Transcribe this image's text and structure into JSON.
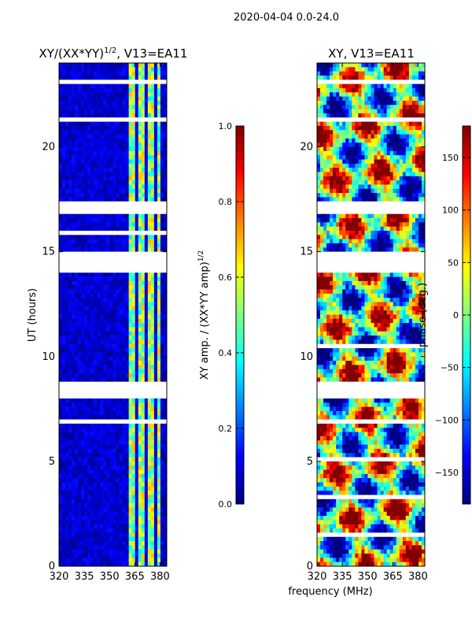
{
  "suptitle": "2020-04-04 0.0-24.0",
  "xlabel_shared": "frequency (MHz)",
  "colors": {
    "jet": [
      "#00007f",
      "#0000ff",
      "#007fff",
      "#00ffff",
      "#7fff7f",
      "#ffff00",
      "#ff7f00",
      "#ff0000",
      "#7f0000"
    ],
    "gap": "#ffffff",
    "frame": "#000000"
  },
  "chart_data": [
    {
      "type": "heatmap",
      "title_main": "XY/(XX*YY)",
      "title_sup": "1/2",
      "title_tail": ", V13=EA11",
      "xlabel": "",
      "ylabel": "UT (hours)",
      "xlim": [
        320,
        384
      ],
      "ylim": [
        0,
        24
      ],
      "xticks": [
        "320",
        "335",
        "350",
        "365",
        "380"
      ],
      "xtick_values": [
        320,
        335,
        350,
        365,
        380
      ],
      "yticks": [
        "0",
        "5",
        "10",
        "15",
        "20"
      ],
      "ytick_values": [
        0,
        5,
        10,
        15,
        20
      ],
      "description_value_range": [
        0.0,
        0.6
      ],
      "bright_band_mhz": [
        361,
        380
      ],
      "blank_time_ranges_hours": [
        [
          14.0,
          14.9
        ],
        [
          8.0,
          8.6
        ],
        [
          16.9,
          17.3
        ]
      ],
      "colorbar": {
        "label_main": "XY amp. / (XX*YY amp)",
        "label_sup": "1/2",
        "vmin": 0.0,
        "vmax": 1.0,
        "ticks": [
          "0.0",
          "0.2",
          "0.4",
          "0.6",
          "0.8",
          "1.0"
        ],
        "tick_values": [
          0.0,
          0.2,
          0.4,
          0.6,
          0.8,
          1.0
        ]
      }
    },
    {
      "type": "heatmap",
      "title": "XY, V13=EA11",
      "xlabel": "frequency (MHz)",
      "ylabel": "",
      "xlim": [
        320,
        384
      ],
      "ylim": [
        0,
        24
      ],
      "xticks": [
        "320",
        "335",
        "350",
        "365",
        "380"
      ],
      "xtick_values": [
        320,
        335,
        350,
        365,
        380
      ],
      "yticks": [
        "0",
        "5",
        "10",
        "15",
        "20"
      ],
      "ytick_values": [
        0,
        5,
        10,
        15,
        20
      ],
      "value_range_deg": [
        -180,
        180
      ],
      "blank_time_ranges_hours": [
        [
          14.0,
          14.9
        ],
        [
          8.0,
          8.6
        ],
        [
          16.9,
          17.3
        ]
      ],
      "colorbar": {
        "label": "phase (deg.)",
        "vmin": -180,
        "vmax": 180,
        "ticks": [
          "−150",
          "−100",
          "−50",
          "0",
          "50",
          "100",
          "150"
        ],
        "tick_values": [
          -150,
          -100,
          -50,
          0,
          50,
          100,
          150
        ]
      }
    }
  ]
}
